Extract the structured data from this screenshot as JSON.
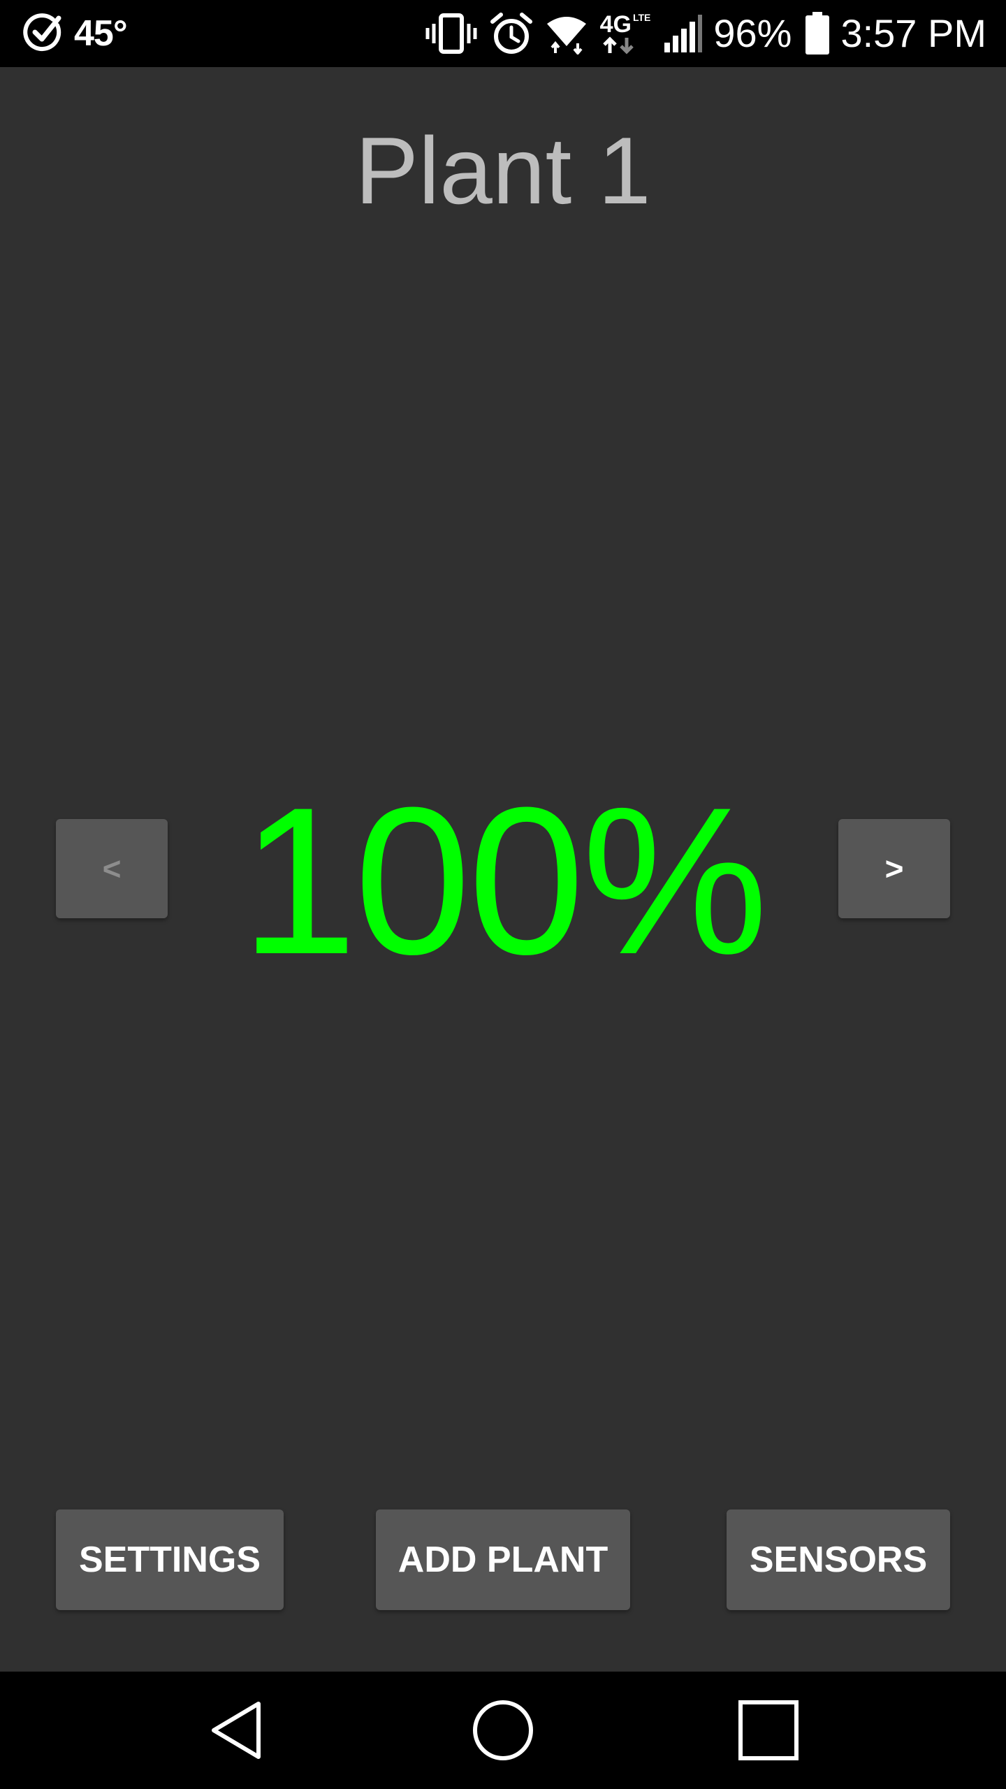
{
  "status_bar": {
    "temperature": "45°",
    "battery": "96%",
    "time": "3:57 PM",
    "network": "4G",
    "network_sub": "LTE",
    "icons": [
      "check-circle-icon",
      "vibrate-icon",
      "alarm-icon",
      "wifi-icon",
      "signal-icon",
      "battery-icon"
    ]
  },
  "header": {
    "title": "Plant 1"
  },
  "main": {
    "prev_label": "<",
    "next_label": ">",
    "moisture_value": "100%",
    "moisture_color": "#00ff00"
  },
  "actions": {
    "settings_label": "SETTINGS",
    "add_plant_label": "ADD PLANT",
    "sensors_label": "SENSORS"
  },
  "nav_bar": {
    "icons": [
      "back-icon",
      "home-icon",
      "recents-icon"
    ]
  }
}
